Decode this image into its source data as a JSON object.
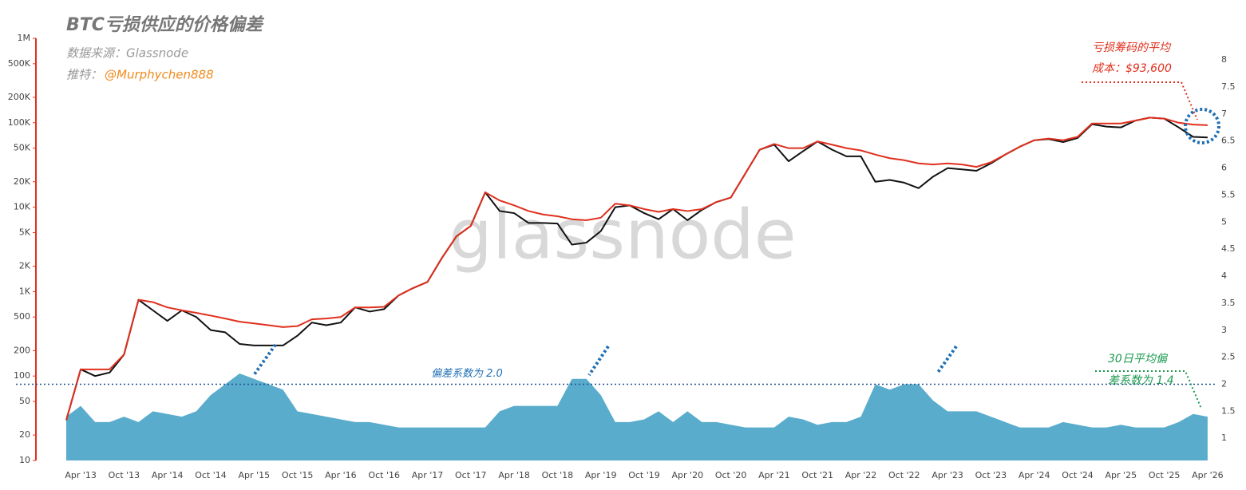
{
  "chart_data": {
    "type": "line",
    "title": "BTC亏损供应的价格偏差",
    "source": "数据来源：Glassnode",
    "twitter_prefix": "推特：",
    "twitter_handle": "@Murphychen888",
    "watermark": "glassnode",
    "annotation_cost": [
      "亏损筹码的平均",
      "成本：$93,600"
    ],
    "annotation_avg": [
      "30日平均偏",
      "差系数为 1.4"
    ],
    "annotation_threshold": "偏差系数为 2.0",
    "threshold": 2.0,
    "y_scale": "log",
    "ylim": [
      10,
      1000000
    ],
    "yticks": [
      10,
      20,
      50,
      100,
      200,
      500,
      {
        "value": 1000,
        "label": "1K"
      },
      {
        "value": 2000,
        "label": "2K"
      },
      {
        "value": 5000,
        "label": "5K"
      },
      {
        "value": 10000,
        "label": "10K"
      },
      {
        "value": 20000,
        "label": "20K"
      },
      {
        "value": 50000,
        "label": "50K"
      },
      {
        "value": 100000,
        "label": "100K"
      },
      {
        "value": 200000,
        "label": "200K"
      },
      {
        "value": 500000,
        "label": "500K"
      },
      {
        "value": 1000000,
        "label": "1M"
      }
    ],
    "y2lim": [
      0.59,
      8.4
    ],
    "y2ticks": [
      1,
      1.5,
      2,
      2.5,
      3,
      3.5,
      4,
      4.5,
      5,
      5.5,
      6,
      6.5,
      7,
      7.5,
      8
    ],
    "categories": [
      null,
      "Apr '13",
      null,
      null,
      "Oct '13",
      null,
      null,
      "Apr '14",
      null,
      null,
      "Oct '14",
      null,
      null,
      "Apr '15",
      null,
      null,
      "Oct '15",
      null,
      null,
      "Apr '16",
      null,
      null,
      "Oct '16",
      null,
      null,
      "Apr '17",
      null,
      null,
      "Oct '17",
      null,
      null,
      "Apr '18",
      null,
      null,
      "Oct '18",
      null,
      null,
      "Apr '19",
      null,
      null,
      "Oct '19",
      null,
      null,
      "Apr '20",
      null,
      null,
      "Oct '20",
      null,
      null,
      "Apr '21",
      null,
      null,
      "Oct '21",
      null,
      null,
      "Apr '22",
      null,
      null,
      "Oct '22",
      null,
      null,
      "Apr '23",
      null,
      null,
      "Oct '23",
      null,
      null,
      "Apr '24",
      null,
      null,
      "Oct '24",
      null,
      null,
      "Apr '25",
      null,
      null,
      "Oct '25",
      null,
      null,
      "Apr '26"
    ],
    "series": [
      {
        "type": "area",
        "axis": "y2",
        "color": "#5aaccc",
        "values": [
          1.4,
          1.6,
          1.3,
          1.3,
          1.4,
          1.3,
          1.5,
          1.45,
          1.4,
          1.5,
          1.8,
          2.0,
          2.2,
          2.1,
          2.0,
          1.9,
          1.5,
          1.45,
          1.4,
          1.35,
          1.3,
          1.3,
          1.25,
          1.2,
          1.2,
          1.2,
          1.2,
          1.2,
          1.2,
          1.2,
          1.5,
          1.6,
          1.6,
          1.6,
          1.6,
          2.1,
          2.1,
          1.8,
          1.3,
          1.3,
          1.35,
          1.5,
          1.3,
          1.5,
          1.3,
          1.3,
          1.25,
          1.2,
          1.2,
          1.2,
          1.4,
          1.35,
          1.25,
          1.3,
          1.3,
          1.4,
          2.0,
          1.9,
          2.0,
          2.0,
          1.7,
          1.5,
          1.5,
          1.5,
          1.4,
          1.3,
          1.2,
          1.2,
          1.2,
          1.3,
          1.25,
          1.2,
          1.2,
          1.25,
          1.2,
          1.2,
          1.2,
          1.3,
          1.45,
          1.4
        ]
      },
      {
        "type": "line",
        "color": "#111111",
        "values": [
          30,
          120,
          100,
          110,
          180,
          800,
          600,
          450,
          600,
          500,
          350,
          330,
          240,
          230,
          230,
          230,
          300,
          430,
          400,
          430,
          650,
          580,
          620,
          900,
          1100,
          1300,
          2500,
          4500,
          6000,
          15000,
          9000,
          8500,
          6500,
          6500,
          6400,
          3600,
          3800,
          5200,
          10000,
          10500,
          8500,
          7200,
          9500,
          7000,
          9300,
          11500,
          13000,
          25000,
          48000,
          55000,
          35000,
          46000,
          60000,
          48000,
          40000,
          40000,
          20000,
          21000,
          19500,
          16800,
          23000,
          29000,
          28000,
          27000,
          33000,
          42000,
          52000,
          62000,
          64000,
          59000,
          66000,
          96000,
          90000,
          88000,
          106000,
          115000,
          112000,
          88000,
          68000,
          67000
        ]
      },
      {
        "type": "line",
        "color": "#e0301e",
        "values": [
          30,
          120,
          120,
          120,
          180,
          800,
          750,
          650,
          600,
          560,
          520,
          480,
          440,
          420,
          400,
          380,
          390,
          470,
          480,
          500,
          650,
          650,
          660,
          900,
          1100,
          1300,
          2500,
          4500,
          6000,
          15000,
          12000,
          10500,
          9000,
          8200,
          7800,
          7200,
          7000,
          7500,
          11000,
          10500,
          9500,
          8800,
          9500,
          9000,
          9500,
          11500,
          13000,
          25000,
          48000,
          56000,
          50000,
          50000,
          60000,
          55000,
          50000,
          47000,
          42000,
          38000,
          36000,
          33000,
          32000,
          33000,
          32000,
          30000,
          34000,
          42000,
          52000,
          62000,
          65000,
          62000,
          68000,
          98000,
          98000,
          98000,
          106000,
          115000,
          112000,
          100000,
          95000,
          93600
        ]
      }
    ]
  }
}
